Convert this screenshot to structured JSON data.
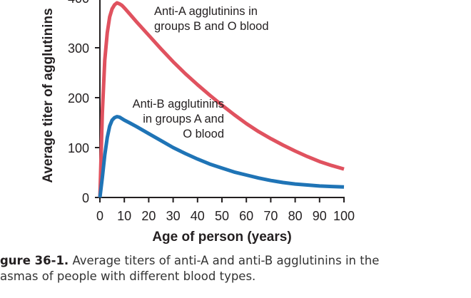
{
  "chart_data": {
    "type": "line",
    "ylabel": "Average titer of agglutinins",
    "xlabel": "Age of person (years)",
    "xlim": [
      0,
      100
    ],
    "ylim": [
      0,
      400
    ],
    "x_ticks": [
      "0",
      "10",
      "20",
      "30",
      "40",
      "50",
      "60",
      "70",
      "80",
      "90",
      "100"
    ],
    "y_ticks": [
      "0",
      "100",
      "200",
      "300",
      "400"
    ],
    "grid": false,
    "series": [
      {
        "name": "Anti-A agglutinins in groups B and O blood",
        "label_lines": [
          "Anti-A agglutinins in",
          "groups B and O blood"
        ],
        "color": "#e0525f",
        "x": [
          0,
          1,
          2,
          3,
          4,
          5,
          6,
          7,
          8,
          9,
          10,
          12,
          15,
          20,
          25,
          30,
          35,
          40,
          45,
          50,
          55,
          60,
          65,
          70,
          75,
          80,
          85,
          90,
          95,
          100
        ],
        "values": [
          0,
          170,
          275,
          330,
          362,
          378,
          386,
          390,
          388,
          385,
          380,
          369,
          352,
          325,
          298,
          272,
          248,
          226,
          205,
          185,
          166,
          148,
          132,
          118,
          105,
          93,
          82,
          72,
          64,
          57
        ]
      },
      {
        "name": "Anti-B agglutinins in groups A and O blood",
        "label_lines": [
          "Anti-B agglutinins",
          "in groups A and",
          "O blood"
        ],
        "color": "#1f74b6",
        "x": [
          0,
          1,
          2,
          3,
          4,
          5,
          6,
          7,
          8,
          9,
          10,
          12,
          15,
          20,
          25,
          30,
          35,
          40,
          45,
          50,
          55,
          60,
          65,
          70,
          75,
          80,
          85,
          90,
          95,
          100
        ],
        "values": [
          0,
          40,
          85,
          120,
          143,
          155,
          160,
          162,
          161,
          158,
          155,
          150,
          142,
          128,
          114,
          100,
          88,
          77,
          67,
          59,
          51,
          45,
          39,
          34,
          30,
          27,
          25,
          23,
          22,
          21
        ]
      }
    ]
  },
  "caption": {
    "label": "gure 36-1.",
    "line1": " Average titers of anti-A and anti-B agglutinins in the",
    "line2": "asmas of people with different blood types."
  }
}
